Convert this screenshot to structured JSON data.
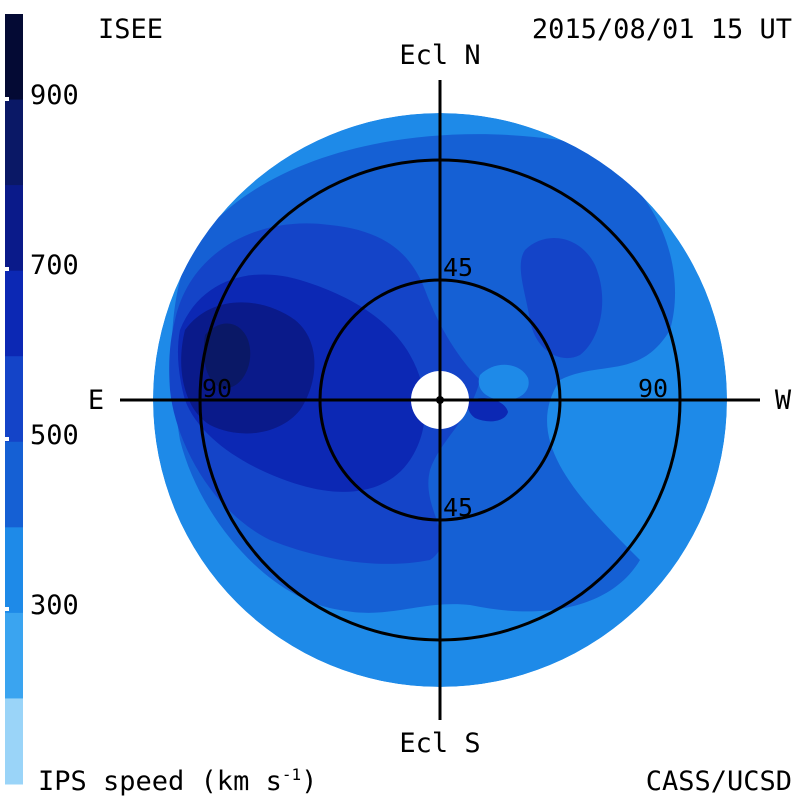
{
  "header": {
    "left": "ISEE",
    "right": "2015/08/01 15 UT"
  },
  "footer": {
    "left": "IPS speed (km s",
    "left_exponent": "-1",
    "left_close": ")",
    "right": "CASS/UCSD"
  },
  "colorbar": {
    "unit": "km s-1",
    "ticks": [
      "900",
      "700",
      "500",
      "300"
    ],
    "bands": [
      {
        "min": 900,
        "max": 1000,
        "color": "#040a34"
      },
      {
        "min": 800,
        "max": 900,
        "color": "#0a1866"
      },
      {
        "min": 700,
        "max": 800,
        "color": "#0a1a8a"
      },
      {
        "min": 600,
        "max": 700,
        "color": "#0c28b4"
      },
      {
        "min": 500,
        "max": 600,
        "color": "#1444c8"
      },
      {
        "min": 400,
        "max": 500,
        "color": "#1560d4"
      },
      {
        "min": 300,
        "max": 400,
        "color": "#1e8ae8"
      },
      {
        "min": 200,
        "max": 300,
        "color": "#3aa4f0"
      },
      {
        "min": 100,
        "max": 200,
        "color": "#9ad4f8"
      }
    ]
  },
  "map": {
    "north_label": "Ecl N",
    "south_label": "Ecl S",
    "east_label": "E",
    "west_label": "W",
    "ring_labels": {
      "inner_top": "45",
      "inner_bottom": "45",
      "outer_left": "90",
      "outer_right": "90"
    }
  }
}
